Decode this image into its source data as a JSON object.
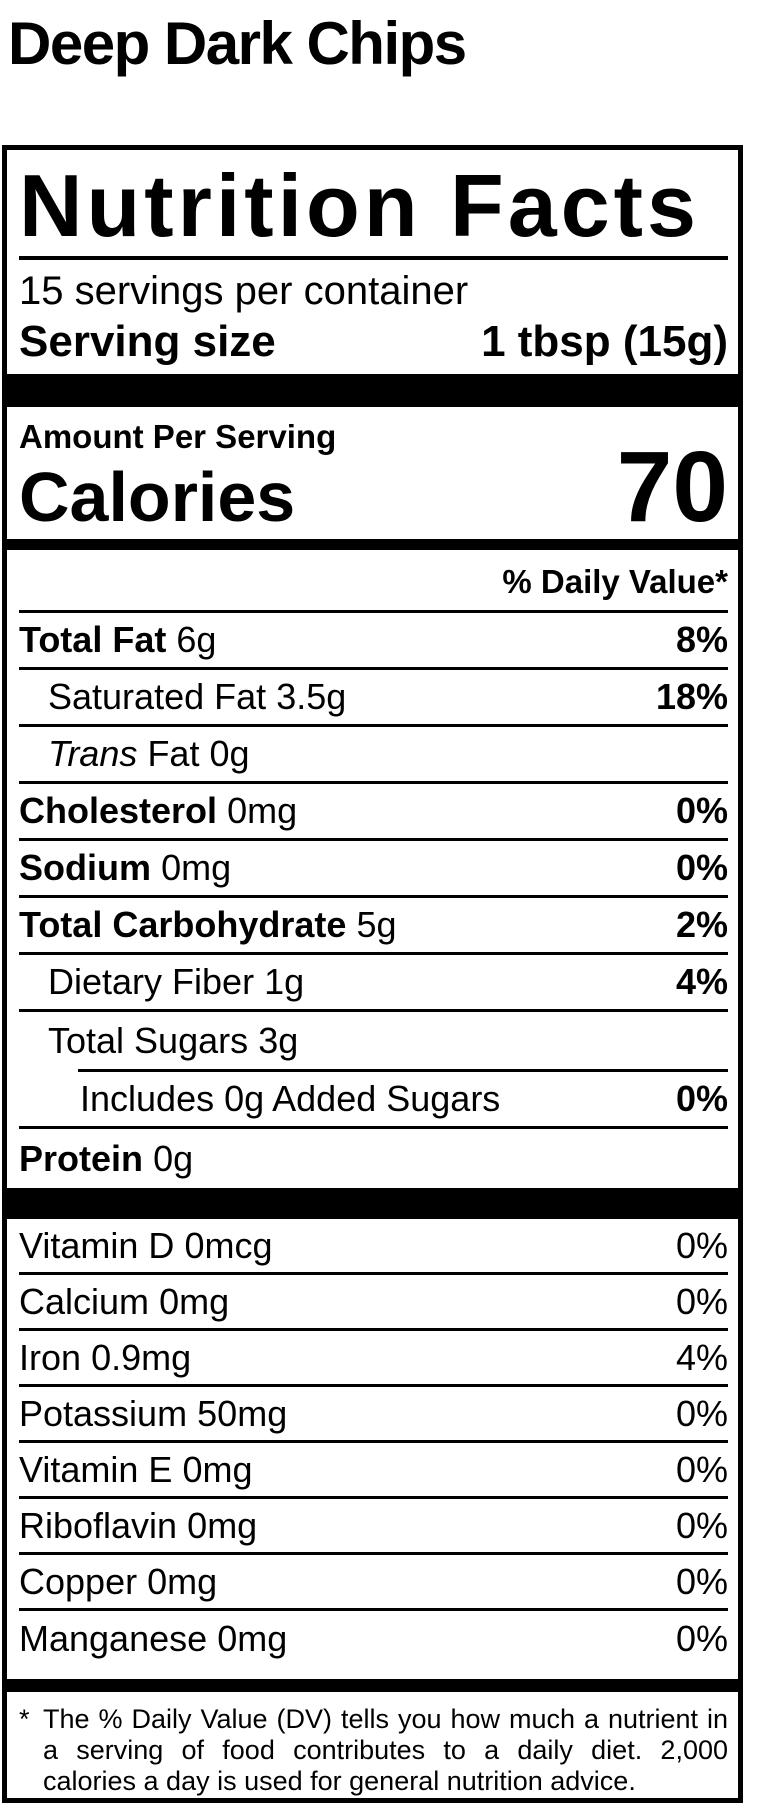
{
  "product_title": "Deep Dark Chips",
  "label": {
    "header": "Nutrition Facts",
    "servings_per_container": "15 servings per container",
    "serving_size": {
      "label": "Serving size",
      "value": "1 tbsp (15g)"
    },
    "amount_per_serving": "Amount Per Serving",
    "calories": {
      "label": "Calories",
      "value": "70"
    },
    "daily_value_header": "% Daily Value*",
    "rows": [
      {
        "name": "Total Fat",
        "amount": "6g",
        "dv": "8%"
      },
      {
        "name": "Saturated Fat",
        "amount": "3.5g",
        "dv": "18%"
      },
      {
        "name": "Trans",
        "amount": "Fat 0g",
        "dv": ""
      },
      {
        "name": "Cholesterol",
        "amount": "0mg",
        "dv": "0%"
      },
      {
        "name": "Sodium",
        "amount": "0mg",
        "dv": "0%"
      },
      {
        "name": "Total Carbohydrate",
        "amount": "5g",
        "dv": "2%"
      },
      {
        "name": "Dietary Fiber",
        "amount": "1g",
        "dv": "4%"
      }
    ],
    "total_sugars": {
      "name": "Total Sugars",
      "amount": "3g"
    },
    "added_sugars": {
      "text": "Includes 0g Added Sugars",
      "dv": "0%"
    },
    "protein": {
      "name": "Protein",
      "amount": "0g"
    },
    "micronutrients": [
      {
        "name": "Vitamin D",
        "amount": "0mcg",
        "dv": "0%"
      },
      {
        "name": "Calcium",
        "amount": "0mg",
        "dv": "0%"
      },
      {
        "name": "Iron",
        "amount": "0.9mg",
        "dv": "4%"
      },
      {
        "name": "Potassium",
        "amount": "50mg",
        "dv": "0%"
      },
      {
        "name": "Vitamin E",
        "amount": "0mg",
        "dv": "0%"
      },
      {
        "name": "Riboflavin",
        "amount": "0mg",
        "dv": "0%"
      },
      {
        "name": "Copper",
        "amount": "0mg",
        "dv": "0%"
      },
      {
        "name": "Manganese",
        "amount": "0mg",
        "dv": "0%"
      }
    ],
    "footnote": {
      "star": "*",
      "text": "The % Daily Value (DV) tells you how much a nutrient in a serving of food contributes to a daily diet. 2,000 calories a day is used for general nutrition advice."
    },
    "colors": {
      "ink": "#000000",
      "background": "#ffffff"
    }
  }
}
